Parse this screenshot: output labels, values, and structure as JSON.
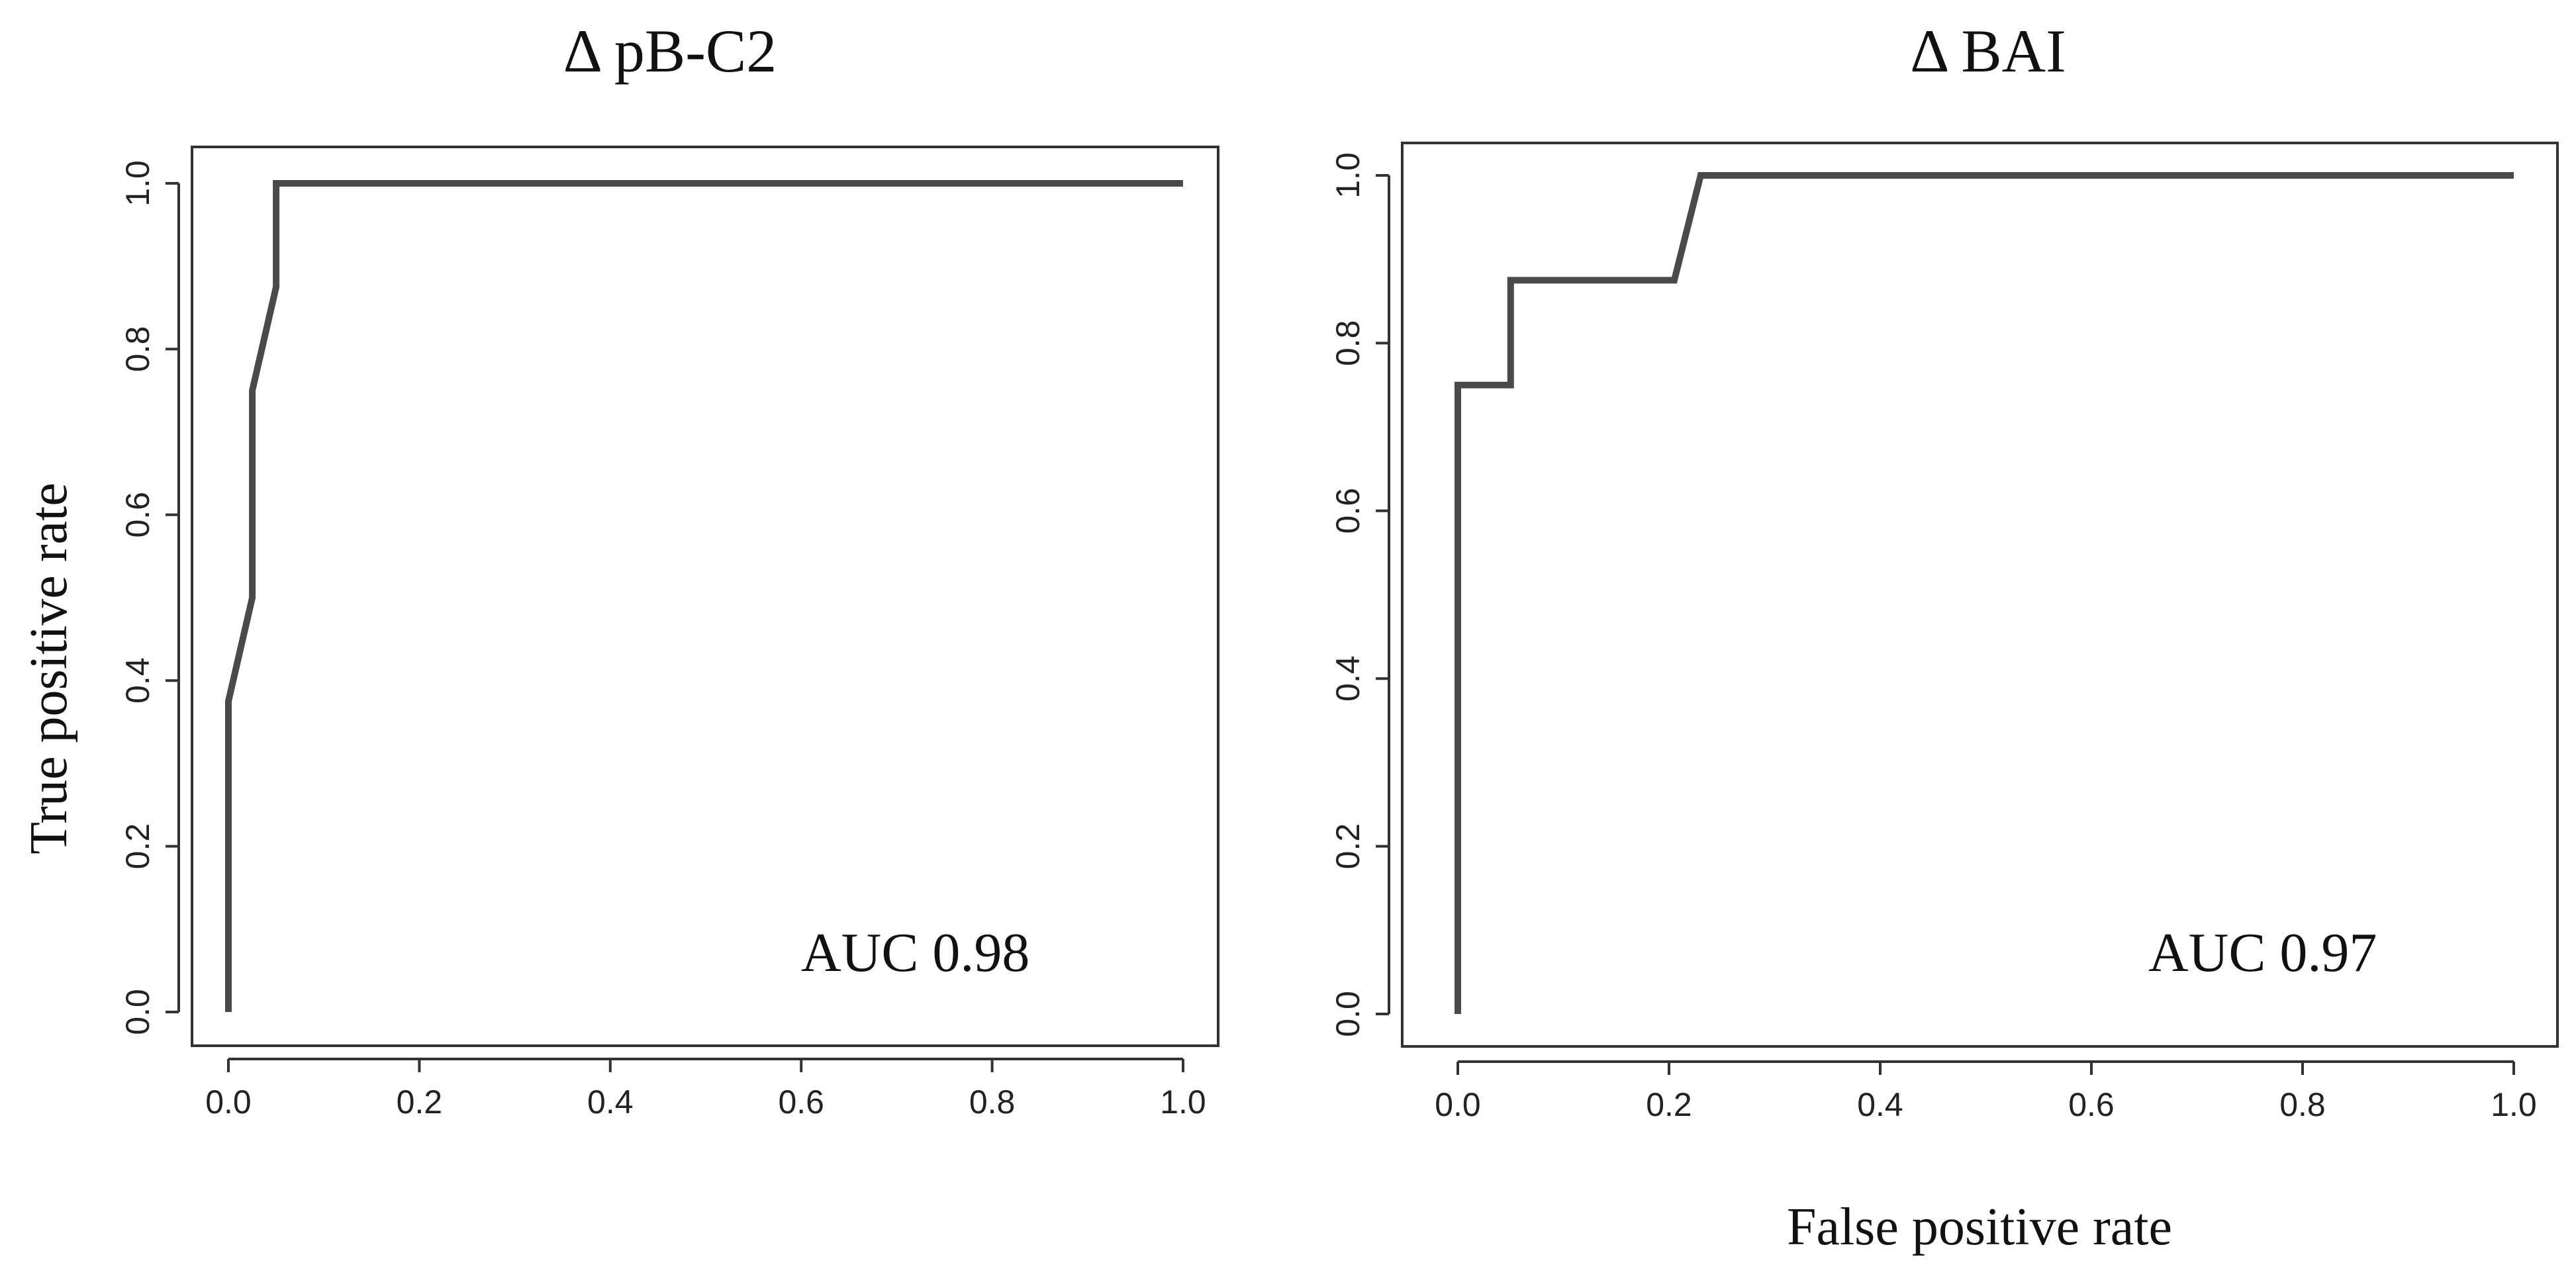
{
  "chart_data": [
    {
      "type": "line",
      "title": "Δ pB-C2",
      "xlabel": "",
      "ylabel": "True positive rate",
      "xlim": [
        0,
        1
      ],
      "ylim": [
        0,
        1
      ],
      "x_ticks": [
        "0.0",
        "0.2",
        "0.4",
        "0.6",
        "0.8",
        "1.0"
      ],
      "y_ticks": [
        "0.0",
        "0.2",
        "0.4",
        "0.6",
        "0.8",
        "1.0"
      ],
      "grid": false,
      "line_color": "#4a4a4a",
      "annotation": "AUC 0.98",
      "series": [
        {
          "x": [
            0.0,
            0.0,
            0.025,
            0.025,
            0.05,
            0.05,
            1.0
          ],
          "y": [
            0.0,
            0.375,
            0.5,
            0.75,
            0.875,
            1.0,
            1.0
          ]
        }
      ]
    },
    {
      "type": "line",
      "title": "Δ BAI",
      "xlabel": "False positive rate",
      "ylabel": "",
      "xlim": [
        0,
        1
      ],
      "ylim": [
        0,
        1
      ],
      "x_ticks": [
        "0.0",
        "0.2",
        "0.4",
        "0.6",
        "0.8",
        "1.0"
      ],
      "y_ticks": [
        "0.0",
        "0.2",
        "0.4",
        "0.6",
        "0.8",
        "1.0"
      ],
      "grid": false,
      "line_color": "#4a4a4a",
      "annotation": "AUC 0.97",
      "series": [
        {
          "x": [
            0.0,
            0.0,
            0.05,
            0.05,
            0.205,
            0.23,
            1.0
          ],
          "y": [
            0.0,
            0.75,
            0.75,
            0.875,
            0.875,
            1.0,
            1.0
          ]
        }
      ]
    }
  ]
}
